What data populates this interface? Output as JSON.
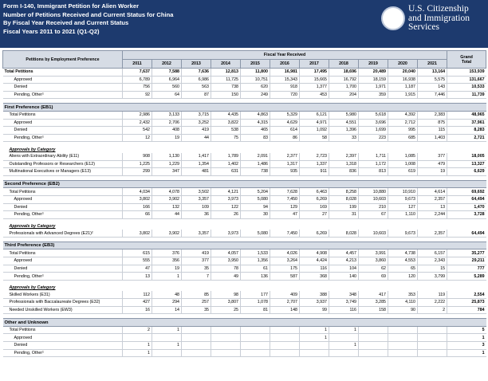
{
  "header": {
    "title_lines": [
      "Form I-140, Immigrant Petition for Alien Worker",
      "Number of Petitions Received and Current Status for China",
      "By Fiscal Year Received and Current Status",
      "Fiscal Years 2011 to 2021 (Q1-Q2)"
    ],
    "agency_lines": [
      "U.S. Citizenship",
      "and Immigration",
      "Services"
    ]
  },
  "table": {
    "row_header": "Petitions by Employment Preference",
    "group_header": "Fiscal Year Received",
    "columns": [
      "2011",
      "2012",
      "2013",
      "2014",
      "2015",
      "2016",
      "2017",
      "2018",
      "2019",
      "2020",
      "2021"
    ],
    "total_header": [
      "Grand",
      "Total"
    ],
    "blocks": [
      {
        "title": null,
        "rows": [
          {
            "label": "Total Petitions",
            "values": [
              "7,637",
              "7,588",
              "7,636",
              "12,813",
              "11,800",
              "16,981",
              "17,495",
              "18,696",
              "20,489",
              "20,040",
              "13,164",
              "153,939"
            ]
          },
          {
            "label": "Approved",
            "values": [
              "6,789",
              "6,964",
              "6,986",
              "11,725",
              "10,751",
              "15,343",
              "15,665",
              "16,792",
              "18,159",
              "16,938",
              "5,575",
              "131,667"
            ]
          },
          {
            "label": "Denied",
            "values": [
              "756",
              "560",
              "563",
              "738",
              "620",
              "918",
              "1,377",
              "1,700",
              "1,971",
              "1,187",
              "143",
              "10,533"
            ]
          },
          {
            "label": "Pending, Other¹",
            "values": [
              "92",
              "64",
              "87",
              "150",
              "249",
              "720",
              "453",
              "204",
              "359",
              "1,915",
              "7,446",
              "11,739"
            ]
          }
        ]
      },
      {
        "title": "First Preference (EB1)",
        "rows": [
          {
            "label": "Total Petitions",
            "values": [
              "2,986",
              "3,133",
              "3,715",
              "4,435",
              "4,863",
              "5,329",
              "6,121",
              "5,980",
              "5,618",
              "4,392",
              "2,383",
              "48,965"
            ]
          },
          {
            "label": "Approved",
            "values": [
              "2,432",
              "2,706",
              "3,252",
              "3,822",
              "4,315",
              "4,629",
              "4,971",
              "4,551",
              "3,696",
              "2,712",
              "875",
              "37,961"
            ]
          },
          {
            "label": "Denied",
            "values": [
              "542",
              "408",
              "419",
              "538",
              "465",
              "614",
              "1,092",
              "1,396",
              "1,699",
              "995",
              "115",
              "8,283"
            ]
          },
          {
            "label": "Pending, Other¹",
            "values": [
              "12",
              "19",
              "44",
              "75",
              "83",
              "86",
              "58",
              "33",
              "223",
              "685",
              "1,403",
              "2,721"
            ]
          }
        ],
        "category_heading": "Approvals by Category",
        "category_rows": [
          {
            "label": "Aliens with Extraordinary Ability (E11)",
            "values": [
              "908",
              "1,130",
              "1,417",
              "1,789",
              "2,091",
              "2,377",
              "2,723",
              "2,397",
              "1,711",
              "1,085",
              "377",
              "18,005"
            ]
          },
          {
            "label": "Outstanding Professors or Researchers (E12)",
            "values": [
              "1,225",
              "1,229",
              "1,354",
              "1,402",
              "1,486",
              "1,317",
              "1,337",
              "1,318",
              "1,172",
              "1,008",
              "479",
              "13,327"
            ]
          },
          {
            "label": "Multinational Executives or Managers (E13)",
            "values": [
              "299",
              "347",
              "481",
              "631",
              "738",
              "935",
              "911",
              "836",
              "813",
              "619",
              "19",
              "6,629"
            ]
          }
        ]
      },
      {
        "title": "Second Preference (EB2)",
        "rows": [
          {
            "label": "Total Petitions",
            "values": [
              "4,034",
              "4,078",
              "3,502",
              "4,121",
              "5,204",
              "7,628",
              "6,463",
              "8,258",
              "10,880",
              "10,910",
              "4,614",
              "69,692"
            ]
          },
          {
            "label": "Approved",
            "values": [
              "3,802",
              "3,902",
              "3,357",
              "3,973",
              "5,080",
              "7,450",
              "6,269",
              "8,028",
              "10,603",
              "9,673",
              "2,357",
              "64,494"
            ]
          },
          {
            "label": "Denied",
            "values": [
              "166",
              "132",
              "109",
              "122",
              "94",
              "129",
              "169",
              "199",
              "210",
              "127",
              "13",
              "1,470"
            ]
          },
          {
            "label": "Pending, Other¹",
            "values": [
              "66",
              "44",
              "36",
              "26",
              "30",
              "47",
              "27",
              "31",
              "67",
              "1,110",
              "2,244",
              "3,728"
            ]
          }
        ],
        "category_heading": "Approvals by Category",
        "category_rows": [
          {
            "label": "Professionals with Advanced Degrees (E21)²",
            "values": [
              "3,802",
              "3,902",
              "3,357",
              "3,973",
              "5,080",
              "7,450",
              "6,269",
              "8,028",
              "10,603",
              "9,673",
              "2,357",
              "64,494"
            ]
          }
        ]
      },
      {
        "title": "Third Preference (EB3)",
        "rows": [
          {
            "label": "Total Petitions",
            "values": [
              "615",
              "376",
              "419",
              "4,057",
              "1,533",
              "4,026",
              "4,908",
              "4,457",
              "3,991",
              "4,738",
              "6,157",
              "35,277"
            ]
          },
          {
            "label": "Approved",
            "values": [
              "555",
              "356",
              "377",
              "3,950",
              "1,356",
              "3,264",
              "4,424",
              "4,213",
              "3,860",
              "4,553",
              "2,343",
              "29,211"
            ]
          },
          {
            "label": "Denied",
            "values": [
              "47",
              "19",
              "35",
              "78",
              "61",
              "175",
              "116",
              "104",
              "62",
              "65",
              "15",
              "777"
            ]
          },
          {
            "label": "Pending, Other¹",
            "values": [
              "13",
              "1",
              "7",
              "49",
              "136",
              "587",
              "368",
              "140",
              "69",
              "120",
              "3,799",
              "5,289"
            ]
          }
        ],
        "category_heading": "Approvals by Category",
        "category_rows": [
          {
            "label": "Skilled Workers (E31)",
            "values": [
              "112",
              "48",
              "85",
              "98",
              "177",
              "409",
              "388",
              "348",
              "417",
              "353",
              "119",
              "2,554"
            ]
          },
          {
            "label": "Professionals with Baccalaureate Degrees (E32)",
            "values": [
              "427",
              "294",
              "257",
              "3,807",
              "1,078",
              "2,707",
              "3,937",
              "3,749",
              "3,285",
              "4,110",
              "2,222",
              "25,873"
            ]
          },
          {
            "label": "Needed Unskilled Workers (EW3)",
            "values": [
              "16",
              "14",
              "35",
              "25",
              "81",
              "148",
              "99",
              "116",
              "158",
              "90",
              "2",
              "784"
            ]
          }
        ]
      },
      {
        "title": "Other and Unknown",
        "rows": [
          {
            "label": "Total Petitions",
            "values": [
              "2",
              "1",
              null,
              null,
              null,
              null,
              "1",
              "1",
              null,
              null,
              null,
              "5"
            ]
          },
          {
            "label": "Approved",
            "values": [
              null,
              null,
              null,
              null,
              null,
              null,
              "1",
              null,
              null,
              null,
              null,
              "1"
            ]
          },
          {
            "label": "Denied",
            "values": [
              "1",
              "1",
              null,
              null,
              null,
              null,
              null,
              "1",
              null,
              null,
              null,
              "3"
            ]
          },
          {
            "label": "Pending, Other¹",
            "values": [
              "1",
              null,
              null,
              null,
              null,
              null,
              null,
              null,
              null,
              null,
              null,
              "1"
            ]
          }
        ]
      }
    ]
  }
}
